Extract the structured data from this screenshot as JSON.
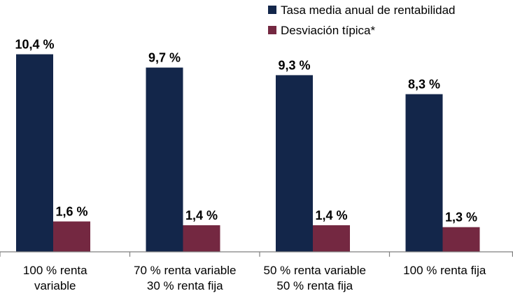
{
  "chart_data": {
    "type": "bar",
    "title": "",
    "xlabel": "",
    "ylabel": "",
    "ylim": [
      0,
      10.9
    ],
    "grid": false,
    "legend_position": "top-right",
    "categories": [
      [
        "100 % renta",
        "variable"
      ],
      [
        "70 % renta variable",
        "30 % renta fija"
      ],
      [
        "50 % renta variable",
        "50 % renta fija"
      ],
      [
        "100 % renta fija"
      ]
    ],
    "series": [
      {
        "name": "Tasa media anual de rentabilidad",
        "color": "#13264a",
        "values": [
          10.4,
          9.7,
          9.3,
          8.3
        ],
        "labels": [
          "10,4 %",
          "9,7 %",
          "9,3 %",
          "8,3 %"
        ]
      },
      {
        "name": "Desviación típica*",
        "color": "#742841",
        "values": [
          1.6,
          1.4,
          1.4,
          1.3
        ],
        "labels": [
          "1,6 %",
          "1,4 %",
          "1,4 %",
          "1,3 %"
        ]
      }
    ]
  }
}
